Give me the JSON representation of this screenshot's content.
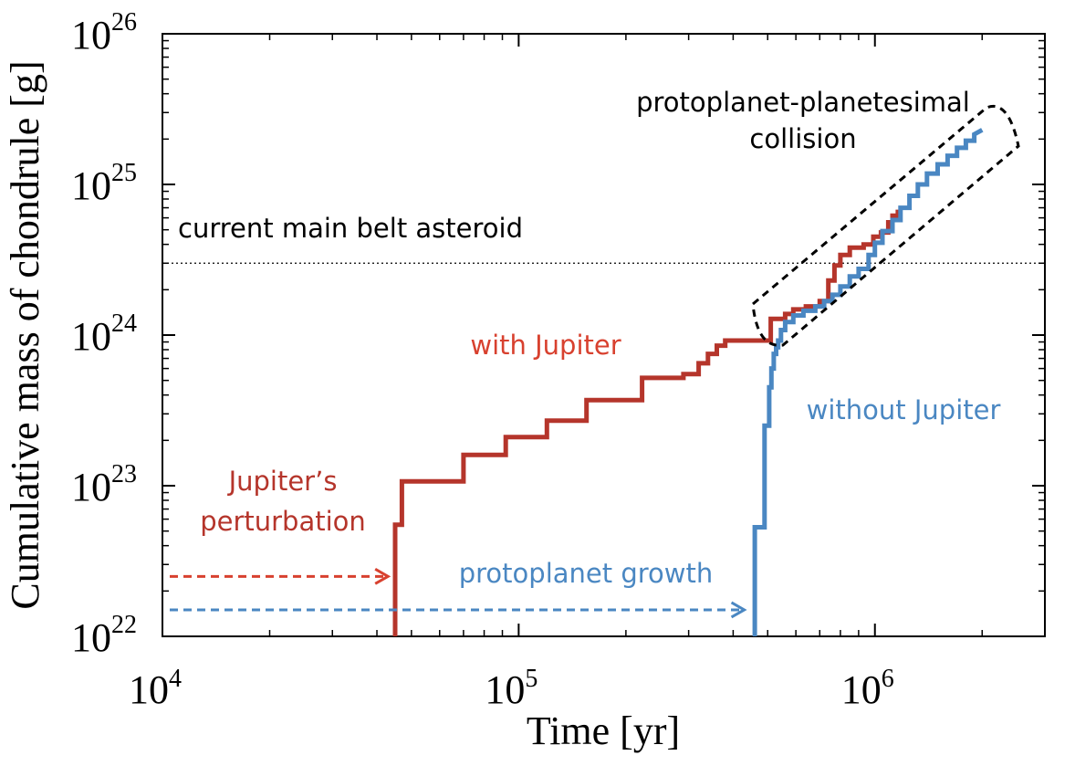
{
  "chart_data": {
    "type": "line",
    "xscale": "log",
    "yscale": "log",
    "xlim": [
      10000,
      3000000
    ],
    "ylim": [
      1e+22,
      1e+26
    ],
    "xlabel": "Time [yr]",
    "ylabel": "Cumulative mass of chondrule [g]",
    "xticks": [
      {
        "value": 10000,
        "base": "10",
        "exp": "4"
      },
      {
        "value": 100000,
        "base": "10",
        "exp": "5"
      },
      {
        "value": 1000000,
        "base": "10",
        "exp": "6"
      }
    ],
    "yticks": [
      {
        "value": 1e+22,
        "base": "10",
        "exp": "22"
      },
      {
        "value": 1e+23,
        "base": "10",
        "exp": "23"
      },
      {
        "value": 1e+24,
        "base": "10",
        "exp": "24"
      },
      {
        "value": 1e+25,
        "base": "10",
        "exp": "25"
      },
      {
        "value": 1e+26,
        "base": "10",
        "exp": "26"
      }
    ],
    "series": [
      {
        "name": "with Jupiter",
        "color": "#b5352b",
        "x": [
          45000,
          45000,
          47000,
          47000,
          70000,
          70000,
          92000,
          92000,
          120000,
          120000,
          155000,
          155000,
          222000,
          222000,
          290000,
          290000,
          320000,
          320000,
          340000,
          340000,
          360000,
          360000,
          380000,
          380000,
          480000,
          510000,
          510000,
          560000,
          560000,
          590000,
          590000,
          640000,
          640000,
          700000,
          700000,
          740000,
          740000,
          770000,
          770000,
          800000,
          800000,
          850000,
          850000,
          930000,
          930000,
          990000,
          990000,
          1040000,
          1040000,
          1090000,
          1090000,
          1120000,
          1120000,
          1160000,
          1160000
        ],
        "y": [
          1e+22,
          5.5e+22,
          5.5e+22,
          1.07e+23,
          1.07e+23,
          1.6e+23,
          1.6e+23,
          2.1e+23,
          2.1e+23,
          2.7e+23,
          2.7e+23,
          3.7e+23,
          3.7e+23,
          5.2e+23,
          5.2e+23,
          5.5e+23,
          5.5e+23,
          6.5e+23,
          6.5e+23,
          7.5e+23,
          7.5e+23,
          8.5e+23,
          8.5e+23,
          9.2e+23,
          9.2e+23,
          9.2e+23,
          1.28e+24,
          1.28e+24,
          1.38e+24,
          1.38e+24,
          1.48e+24,
          1.48e+24,
          1.55e+24,
          1.55e+24,
          1.68e+24,
          1.68e+24,
          2.3e+24,
          2.3e+24,
          2.9e+24,
          2.9e+24,
          3.4e+24,
          3.4e+24,
          3.8e+24,
          3.8e+24,
          4e+24,
          4e+24,
          4.5e+24,
          4.5e+24,
          4.8e+24,
          4.8e+24,
          5.6e+24,
          5.6e+24,
          6.2e+24,
          6.2e+24,
          6.8e+24
        ]
      },
      {
        "name": "without Jupiter",
        "color": "#4a87c2",
        "x": [
          460000,
          460000,
          490000,
          490000,
          505000,
          505000,
          512000,
          512000,
          520000,
          520000,
          528000,
          528000,
          535000,
          535000,
          545000,
          545000,
          560000,
          560000,
          590000,
          590000,
          630000,
          630000,
          680000,
          680000,
          720000,
          720000,
          760000,
          760000,
          800000,
          800000,
          850000,
          850000,
          900000,
          900000,
          960000,
          960000,
          1000000,
          1000000,
          1050000,
          1050000,
          1120000,
          1120000,
          1180000,
          1180000,
          1250000,
          1250000,
          1320000,
          1320000,
          1400000,
          1400000,
          1500000,
          1500000,
          1600000,
          1600000,
          1700000,
          1700000,
          1800000,
          1800000,
          1900000,
          1900000,
          2000000
        ],
        "y": [
          1e+22,
          5.3e+22,
          5.3e+22,
          2.5e+23,
          2.5e+23,
          4.5e+23,
          4.5e+23,
          6e+23,
          6e+23,
          7.5e+23,
          7.5e+23,
          8.3e+23,
          8.3e+23,
          9.2e+23,
          9.2e+23,
          1.08e+24,
          1.08e+24,
          1.22e+24,
          1.22e+24,
          1.35e+24,
          1.35e+24,
          1.45e+24,
          1.45e+24,
          1.55e+24,
          1.55e+24,
          1.68e+24,
          1.68e+24,
          1.85e+24,
          1.85e+24,
          2.1e+24,
          2.1e+24,
          2.45e+24,
          2.45e+24,
          2.75e+24,
          2.75e+24,
          3.4e+24,
          3.4e+24,
          4.1e+24,
          4.1e+24,
          4.9e+24,
          4.9e+24,
          5.8e+24,
          5.8e+24,
          7e+24,
          7e+24,
          8.4e+24,
          8.4e+24,
          1e+25,
          1e+25,
          1.18e+25,
          1.18e+25,
          1.36e+25,
          1.36e+25,
          1.55e+25,
          1.55e+25,
          1.75e+25,
          1.75e+25,
          1.95e+25,
          1.95e+25,
          2.15e+25,
          2.3e+25
        ]
      }
    ],
    "reference_line": {
      "y": 3e+24,
      "label": "current main belt asteroid",
      "style": "dotted"
    },
    "annotations": [
      {
        "id": "collision",
        "lines": [
          "protoplanet-planetesimal",
          "collision"
        ],
        "color": "#000000"
      },
      {
        "id": "with",
        "text": "with Jupiter",
        "color": "#d8412f"
      },
      {
        "id": "without",
        "text": "without Jupiter",
        "color": "#4a87c2"
      },
      {
        "id": "perturb",
        "lines": [
          "Jupiter’s",
          "perturbation"
        ],
        "color": "#b5352b"
      },
      {
        "id": "growth",
        "text": "protoplanet growth",
        "color": "#4a87c2"
      }
    ],
    "arrows": [
      {
        "id": "red-arrow",
        "x_start": 10000,
        "x_end": 44000,
        "y": 2.5e+22,
        "color": "#d8412f",
        "style": "dashed"
      },
      {
        "id": "blue-arrow",
        "x_start": 10000,
        "x_end": 440000,
        "y": 1.5e+22,
        "color": "#4a87c2",
        "style": "dashed"
      }
    ],
    "grid": false,
    "legend": "none"
  }
}
